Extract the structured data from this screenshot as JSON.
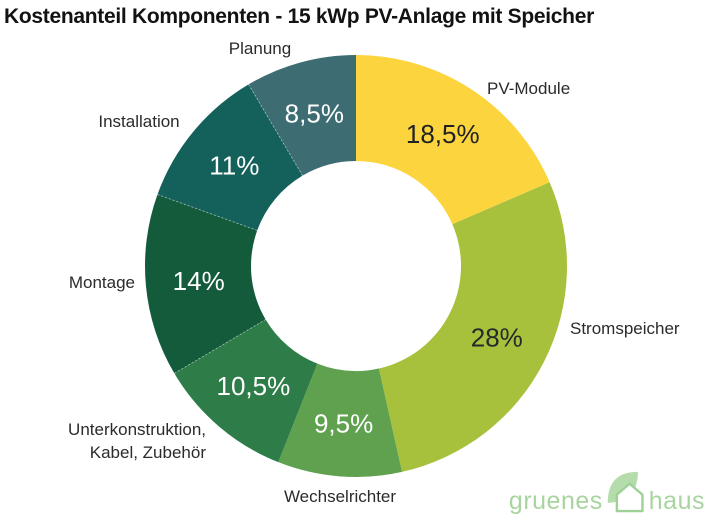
{
  "title": "Kostenanteil Komponenten - 15 kWp PV-Anlage mit Speicher",
  "chart_data": {
    "type": "pie",
    "subtype": "donut",
    "unit": "%",
    "start_angle_deg": 0,
    "direction": "clockwise",
    "title": "Kostenanteil Komponenten - 15 kWp PV-Anlage mit Speicher",
    "slices": [
      {
        "label": "PV-Module",
        "value": 18.5,
        "value_label": "18,5%",
        "color": "#FBD43E",
        "text_color": "#1F2125"
      },
      {
        "label": "Stromspeicher",
        "value": 28,
        "value_label": "28%",
        "color": "#A7C13D",
        "text_color": "#26292B"
      },
      {
        "label": "Wechselrichter",
        "value": 9.5,
        "value_label": "9,5%",
        "color": "#60A150",
        "text_color": "#FFFFFF"
      },
      {
        "label": "Unterkonstruktion, Kabel, Zubehör",
        "value": 10.5,
        "value_label": "10,5%",
        "color": "#2E7D48",
        "text_color": "#FFFFFF"
      },
      {
        "label": "Montage",
        "value": 14,
        "value_label": "14%",
        "color": "#135B3B",
        "text_color": "#FFFFFF"
      },
      {
        "label": "Installation",
        "value": 11,
        "value_label": "11%",
        "color": "#14605A",
        "text_color": "#FFFFFF"
      },
      {
        "label": "Planung",
        "value": 8.5,
        "value_label": "8,5%",
        "color": "#3D6D72",
        "text_color": "#FFFFFF"
      }
    ]
  },
  "logo": {
    "word1": "gruenes",
    "word2": "haus",
    "text_color": "#A8D49F",
    "leaf_color": "#B5DCAB",
    "house_outline_color": "#9ED196",
    "icon": "leaf-house-icon"
  }
}
